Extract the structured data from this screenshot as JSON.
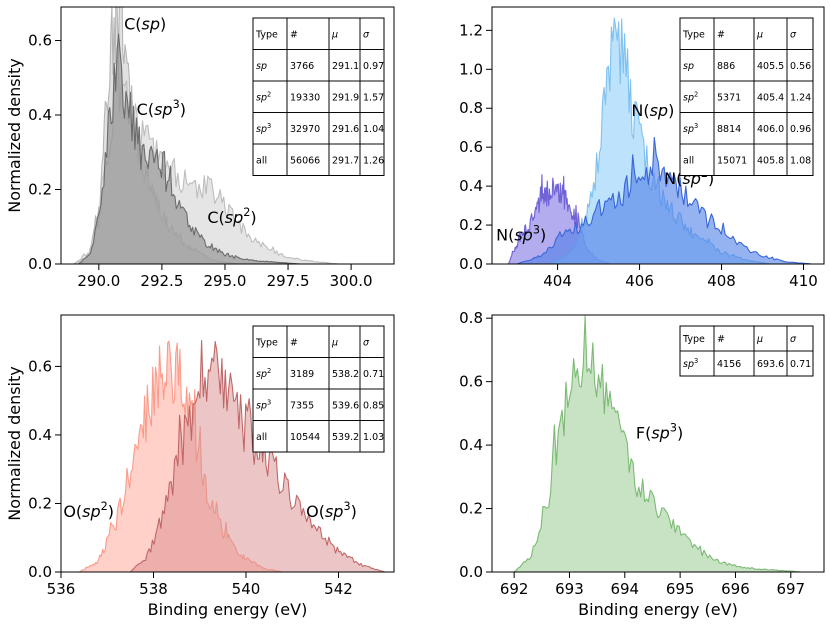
{
  "figure": {
    "shared_ylabel": "Normalized density",
    "shared_xlabel": "Binding energy (eV)"
  },
  "chart_data": [
    {
      "type": "area",
      "title": "",
      "xlabel": "",
      "ylabel": "Normalized density",
      "xlim": [
        288.5,
        301.7
      ],
      "ylim": [
        0,
        0.69
      ],
      "xticks": [
        290.0,
        292.5,
        295.0,
        297.5,
        300.0
      ],
      "xtick_labels": [
        "290.0",
        "292.5",
        "295.0",
        "297.5",
        "300.0"
      ],
      "yticks": [
        0.0,
        0.2,
        0.4,
        0.6
      ],
      "ytick_labels": [
        "0.0",
        "0.2",
        "0.4",
        "0.6"
      ],
      "series": [
        {
          "name": "C(sp)",
          "fill": "#c8c8c8",
          "stroke": "#b5b5b5",
          "opacity": 0.55,
          "x": [
            289.0,
            289.6,
            290.0,
            290.3,
            290.6,
            290.9,
            291.1,
            291.4,
            291.8,
            292.2,
            292.7,
            293.5,
            294.5,
            295.5
          ],
          "y": [
            0.0,
            0.02,
            0.14,
            0.46,
            0.63,
            0.61,
            0.5,
            0.36,
            0.25,
            0.18,
            0.11,
            0.05,
            0.01,
            0.0
          ]
        },
        {
          "name": "C(sp2)",
          "fill": "#d3d3d3",
          "stroke": "#bdbdbd",
          "opacity": 0.6,
          "x": [
            289.0,
            289.6,
            290.0,
            290.4,
            290.8,
            291.2,
            291.7,
            292.3,
            292.9,
            293.4,
            293.9,
            294.4,
            295.0,
            295.5,
            296.2,
            297.0,
            298.0,
            299.5
          ],
          "y": [
            0.0,
            0.03,
            0.12,
            0.3,
            0.48,
            0.44,
            0.34,
            0.28,
            0.25,
            0.23,
            0.21,
            0.2,
            0.16,
            0.11,
            0.06,
            0.03,
            0.01,
            0.0
          ]
        },
        {
          "name": "C(sp3)",
          "fill": "#8a8a8a",
          "stroke": "#6b6b6b",
          "opacity": 0.6,
          "x": [
            289.2,
            289.7,
            290.0,
            290.3,
            290.6,
            290.8,
            291.0,
            291.3,
            291.6,
            292.0,
            292.3,
            292.6,
            293.0,
            293.5,
            294.0,
            294.6,
            295.2,
            296.0,
            297.0,
            298.0
          ],
          "y": [
            0.0,
            0.03,
            0.12,
            0.32,
            0.48,
            0.55,
            0.47,
            0.37,
            0.31,
            0.29,
            0.27,
            0.25,
            0.18,
            0.12,
            0.07,
            0.04,
            0.02,
            0.01,
            0.005,
            0.0
          ]
        }
      ],
      "annotations": [
        {
          "text": "C(sp)",
          "x": 291.0,
          "y": 0.63
        },
        {
          "text": "C(sp3)",
          "x": 291.5,
          "y": 0.4
        },
        {
          "text": "C(sp2)",
          "x": 294.3,
          "y": 0.11
        }
      ],
      "table": {
        "headers": [
          "Type",
          "#",
          "μ",
          "σ"
        ],
        "rows": [
          [
            "sp",
            "3766",
            "291.1",
            "0.97"
          ],
          [
            "sp2",
            "19330",
            "291.9",
            "1.57"
          ],
          [
            "sp3",
            "32970",
            "291.6",
            "1.04"
          ],
          [
            "all",
            "56066",
            "291.7",
            "1.26"
          ]
        ]
      }
    },
    {
      "type": "area",
      "title": "",
      "xlabel": "",
      "ylabel": "",
      "xlim": [
        402.4,
        410.5
      ],
      "ylim": [
        0,
        1.32
      ],
      "xticks": [
        404,
        406,
        408,
        410
      ],
      "xtick_labels": [
        "404",
        "406",
        "408",
        "410"
      ],
      "yticks": [
        0.0,
        0.2,
        0.4,
        0.6,
        0.8,
        1.0,
        1.2
      ],
      "ytick_labels": [
        "0.0",
        "0.2",
        "0.4",
        "0.6",
        "0.8",
        "1.0",
        "1.2"
      ],
      "series": [
        {
          "name": "N(sp3)",
          "fill": "#8b7fe6",
          "stroke": "#6f63d6",
          "opacity": 0.65,
          "x": [
            402.8,
            403.0,
            403.3,
            403.6,
            403.9,
            404.2,
            404.5,
            404.7,
            405.0,
            405.3
          ],
          "y": [
            0.0,
            0.1,
            0.2,
            0.34,
            0.38,
            0.33,
            0.22,
            0.08,
            0.02,
            0.0
          ]
        },
        {
          "name": "N(sp)",
          "fill": "#9fd6fb",
          "stroke": "#7fc0f0",
          "opacity": 0.7,
          "x": [
            403.8,
            404.3,
            404.7,
            405.0,
            405.2,
            405.4,
            405.6,
            405.9,
            406.2,
            406.6,
            407.0,
            407.5,
            408.0,
            408.6,
            409.2
          ],
          "y": [
            0.0,
            0.05,
            0.22,
            0.55,
            0.95,
            1.22,
            1.05,
            0.72,
            0.5,
            0.32,
            0.22,
            0.12,
            0.06,
            0.02,
            0.0
          ]
        },
        {
          "name": "N(sp2)",
          "fill": "#4f7fe8",
          "stroke": "#3a66d8",
          "opacity": 0.6,
          "x": [
            403.0,
            403.6,
            404.0,
            404.4,
            404.8,
            405.2,
            405.6,
            406.0,
            406.4,
            406.8,
            407.2,
            407.6,
            408.0,
            408.5,
            409.0,
            409.6,
            410.2
          ],
          "y": [
            0.0,
            0.04,
            0.12,
            0.18,
            0.22,
            0.28,
            0.36,
            0.46,
            0.48,
            0.42,
            0.33,
            0.24,
            0.16,
            0.09,
            0.04,
            0.01,
            0.0
          ]
        }
      ],
      "annotations": [
        {
          "text": "N(sp)",
          "x": 405.8,
          "y": 0.76
        },
        {
          "text": "N(sp2)",
          "x": 406.6,
          "y": 0.41
        },
        {
          "text": "N(sp3)",
          "x": 402.5,
          "y": 0.12
        }
      ],
      "table": {
        "headers": [
          "Type",
          "#",
          "μ",
          "σ"
        ],
        "rows": [
          [
            "sp",
            "886",
            "405.5",
            "0.56"
          ],
          [
            "sp2",
            "5371",
            "405.4",
            "1.24"
          ],
          [
            "sp3",
            "8814",
            "406.0",
            "0.96"
          ],
          [
            "all",
            "15071",
            "405.8",
            "1.08"
          ]
        ]
      }
    },
    {
      "type": "area",
      "title": "",
      "xlabel": "Binding energy (eV)",
      "ylabel": "Normalized density",
      "xlim": [
        536.0,
        543.2
      ],
      "ylim": [
        0,
        0.75
      ],
      "xticks": [
        536,
        538,
        540,
        542
      ],
      "xtick_labels": [
        "536",
        "538",
        "540",
        "542"
      ],
      "yticks": [
        0.0,
        0.2,
        0.4,
        0.6
      ],
      "ytick_labels": [
        "0.0",
        "0.2",
        "0.4",
        "0.6"
      ],
      "series": [
        {
          "name": "O(sp2)",
          "fill": "#ffb2a5",
          "stroke": "#fb9b8b",
          "opacity": 0.6,
          "x": [
            536.4,
            536.8,
            537.2,
            537.6,
            538.0,
            538.3,
            538.6,
            538.9,
            539.2,
            539.5,
            539.8,
            540.1,
            540.4,
            540.8
          ],
          "y": [
            0.0,
            0.03,
            0.15,
            0.35,
            0.52,
            0.62,
            0.58,
            0.4,
            0.22,
            0.12,
            0.06,
            0.03,
            0.01,
            0.0
          ]
        },
        {
          "name": "O(sp3)",
          "fill": "#d98d8d",
          "stroke": "#c06767",
          "opacity": 0.5,
          "x": [
            537.5,
            537.9,
            538.3,
            538.7,
            539.0,
            539.3,
            539.6,
            540.0,
            540.4,
            540.8,
            541.2,
            541.6,
            542.0,
            542.5,
            543.0
          ],
          "y": [
            0.0,
            0.05,
            0.2,
            0.42,
            0.55,
            0.6,
            0.52,
            0.42,
            0.34,
            0.26,
            0.18,
            0.11,
            0.06,
            0.02,
            0.0
          ]
        }
      ],
      "annotations": [
        {
          "text": "O(sp2)",
          "x": 536.05,
          "y": 0.16
        },
        {
          "text": "O(sp3)",
          "x": 541.3,
          "y": 0.16
        }
      ],
      "table": {
        "headers": [
          "Type",
          "#",
          "μ",
          "σ"
        ],
        "rows": [
          [
            "sp2",
            "3189",
            "538.2",
            "0.71"
          ],
          [
            "sp3",
            "7355",
            "539.6",
            "0.85"
          ],
          [
            "all",
            "10544",
            "539.2",
            "1.03"
          ]
        ]
      }
    },
    {
      "type": "area",
      "title": "",
      "xlabel": "Binding energy (eV)",
      "ylabel": "",
      "xlim": [
        691.6,
        697.6
      ],
      "ylim": [
        0,
        0.81
      ],
      "xticks": [
        692,
        693,
        694,
        695,
        696,
        697
      ],
      "xtick_labels": [
        "692",
        "693",
        "694",
        "695",
        "696",
        "697"
      ],
      "yticks": [
        0.0,
        0.2,
        0.4,
        0.6,
        0.8
      ],
      "ytick_labels": [
        "0.0",
        "0.2",
        "0.4",
        "0.6",
        "0.8"
      ],
      "series": [
        {
          "name": "F(sp3)",
          "fill": "#a9d4a3",
          "stroke": "#7cba74",
          "opacity": 0.65,
          "x": [
            692.0,
            692.3,
            692.6,
            692.9,
            693.2,
            693.5,
            693.8,
            694.0,
            694.2,
            694.5,
            694.8,
            695.1,
            695.5,
            695.9,
            696.3,
            696.8,
            697.2
          ],
          "y": [
            0.0,
            0.05,
            0.22,
            0.5,
            0.62,
            0.64,
            0.55,
            0.38,
            0.28,
            0.22,
            0.16,
            0.1,
            0.05,
            0.02,
            0.01,
            0.005,
            0.0
          ]
        }
      ],
      "annotations": [
        {
          "text": "F(sp3)",
          "x": 694.2,
          "y": 0.42
        }
      ],
      "table": {
        "headers": [
          "Type",
          "#",
          "μ",
          "σ"
        ],
        "rows": [
          [
            "sp3",
            "4156",
            "693.6",
            "0.71"
          ]
        ]
      }
    }
  ]
}
